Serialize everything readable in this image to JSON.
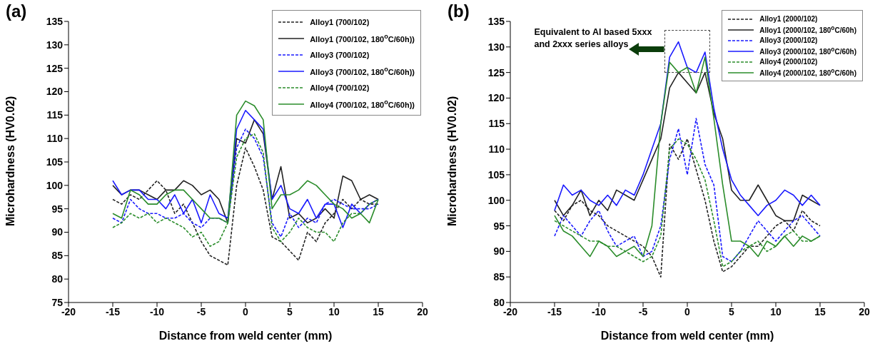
{
  "chart_data": [
    {
      "type": "line",
      "title": "(a)",
      "xlabel": "Distance from weld center (mm)",
      "ylabel": "Microhardness (HV0.02)",
      "xlim": [
        -20,
        20
      ],
      "xticks": [
        -20,
        -15,
        -10,
        -5,
        0,
        5,
        10,
        15,
        20
      ],
      "ylim": [
        75,
        135
      ],
      "yticks": [
        75,
        80,
        85,
        90,
        95,
        100,
        105,
        110,
        115,
        120,
        125,
        130,
        135
      ],
      "grid": false,
      "legend": "top right",
      "marker": "none",
      "x": [
        -15,
        -14,
        -13,
        -12,
        -11,
        -10,
        -9,
        -8,
        -7,
        -6,
        -5,
        -4,
        -3,
        -2,
        -1,
        0,
        1,
        2,
        3,
        4,
        5,
        6,
        7,
        8,
        9,
        10,
        11,
        12,
        13,
        14,
        15
      ],
      "series": [
        {
          "name": "Alloy1 (700/102)",
          "color": "#222222",
          "line_style": "dashed",
          "values": [
            97,
            96,
            98,
            97,
            99,
            101,
            99,
            94,
            96,
            92,
            88,
            85,
            84,
            83,
            100,
            108,
            104,
            99,
            89,
            88,
            86,
            84,
            90,
            88,
            92,
            94,
            97,
            95,
            97,
            96,
            96
          ]
        },
        {
          "name": "Alloy1 (700/102, 180$^{o}$C/60h))",
          "color": "#222222",
          "line_style": "solid",
          "values": [
            100,
            98,
            99,
            99,
            98,
            97,
            99,
            99,
            101,
            100,
            98,
            99,
            97,
            92,
            110,
            109,
            114,
            111,
            97,
            104,
            93,
            94,
            92,
            93,
            95,
            93,
            102,
            101,
            97,
            98,
            97
          ]
        },
        {
          "name": "Alloy3 (700/102)",
          "color": "#1a1aff",
          "line_style": "dashed",
          "values": [
            93,
            92,
            97,
            95,
            94,
            94,
            93,
            93,
            94,
            92,
            91,
            93,
            93,
            92,
            108,
            112,
            110,
            106,
            92,
            89,
            94,
            91,
            93,
            92,
            96,
            97,
            96,
            95,
            95,
            95,
            96
          ]
        },
        {
          "name": "Alloy3 (700/102, 180$^{o}$C/60h))",
          "color": "#1a1aff",
          "line_style": "solid",
          "values": [
            101,
            98,
            99,
            99,
            97,
            97,
            95,
            98,
            94,
            97,
            92,
            98,
            94,
            93,
            112,
            116,
            114,
            112,
            97,
            100,
            95,
            94,
            97,
            93,
            96,
            96,
            91,
            96,
            94,
            96,
            97
          ]
        },
        {
          "name": "Alloy4 (700/102)",
          "color": "#2a8c2a",
          "line_style": "dashed",
          "values": [
            91,
            92,
            94,
            93,
            94,
            92,
            93,
            92,
            91,
            89,
            90,
            87,
            88,
            92,
            106,
            110,
            111,
            107,
            91,
            88,
            90,
            93,
            91,
            90,
            90,
            88,
            92,
            94,
            94,
            96,
            97
          ]
        },
        {
          "name": "Alloy4 (700/102, 180$^{o}$C/60h))",
          "color": "#2a8c2a",
          "line_style": "solid",
          "values": [
            94,
            93,
            99,
            98,
            96,
            96,
            98,
            99,
            99,
            97,
            95,
            93,
            93,
            92,
            115,
            118,
            117,
            114,
            95,
            98,
            98,
            99,
            101,
            100,
            98,
            96,
            95,
            93,
            94,
            92,
            97
          ]
        }
      ]
    },
    {
      "type": "line",
      "title": "(b)",
      "xlabel": "Distance from weld center (mm)",
      "ylabel": "Microhardness (HV0.02)",
      "xlim": [
        -20,
        20
      ],
      "xticks": [
        -20,
        -15,
        -10,
        -5,
        0,
        5,
        10,
        15,
        20
      ],
      "ylim": [
        80,
        135
      ],
      "yticks": [
        80,
        85,
        90,
        95,
        100,
        105,
        110,
        115,
        120,
        125,
        130,
        135
      ],
      "grid": false,
      "legend": "top right",
      "marker": "none",
      "annotations": [
        "Equivalent to Al based 5xxx and 2xxx series alloys"
      ],
      "x": [
        -15,
        -14,
        -13,
        -12,
        -11,
        -10,
        -9,
        -8,
        -7,
        -6,
        -5,
        -4,
        -3,
        -2,
        -1,
        0,
        1,
        2,
        3,
        4,
        5,
        6,
        7,
        8,
        9,
        10,
        11,
        12,
        13,
        14,
        15
      ],
      "series": [
        {
          "name": "Alloy1 (2000/102)",
          "color": "#222222",
          "line_style": "dashed",
          "values": [
            98,
            96,
            99,
            100,
            98,
            97,
            95,
            94,
            93,
            92,
            91,
            89,
            85,
            111,
            108,
            112,
            106,
            100,
            92,
            86,
            87,
            89,
            91,
            91,
            93,
            95,
            96,
            94,
            98,
            96,
            95
          ]
        },
        {
          "name": "Alloy1 (2000/102, 180$^{o}$C/60h)",
          "color": "#222222",
          "line_style": "solid",
          "values": [
            100,
            97,
            99,
            102,
            97,
            100,
            98,
            102,
            101,
            100,
            104,
            108,
            112,
            122,
            125,
            123,
            121,
            125,
            117,
            112,
            102,
            100,
            100,
            103,
            100,
            97,
            96,
            96,
            101,
            100,
            99
          ]
        },
        {
          "name": "Alloy3 (2000/102)",
          "color": "#1a1aff",
          "line_style": "dashed",
          "values": [
            93,
            97,
            95,
            93,
            96,
            98,
            94,
            91,
            92,
            93,
            89,
            90,
            95,
            108,
            114,
            105,
            116,
            107,
            103,
            89,
            88,
            90,
            93,
            96,
            94,
            92,
            94,
            96,
            97,
            95,
            93
          ]
        },
        {
          "name": "Alloy3 (2000/102, 180$^{o}$C/60h)",
          "color": "#1a1aff",
          "line_style": "solid",
          "values": [
            98,
            103,
            101,
            102,
            100,
            99,
            101,
            99,
            102,
            101,
            105,
            110,
            115,
            128,
            131,
            126,
            125,
            129,
            118,
            110,
            104,
            101,
            99,
            97,
            99,
            100,
            102,
            101,
            99,
            101,
            99
          ]
        },
        {
          "name": "Alloy4 (2000/102)",
          "color": "#2a8c2a",
          "line_style": "dashed",
          "values": [
            96,
            95,
            94,
            93,
            92,
            92,
            91,
            91,
            90,
            89,
            88,
            89,
            93,
            110,
            112,
            111,
            108,
            104,
            96,
            87,
            88,
            90,
            91,
            92,
            90,
            91,
            93,
            94,
            92,
            92,
            93
          ]
        },
        {
          "name": "Alloy4 (2000/102, 180$^{o}$C/60h)",
          "color": "#2a8c2a",
          "line_style": "solid",
          "values": [
            97,
            94,
            93,
            91,
            89,
            92,
            91,
            89,
            90,
            91,
            89,
            95,
            115,
            127,
            125,
            126,
            121,
            128,
            116,
            103,
            92,
            92,
            91,
            89,
            92,
            91,
            93,
            91,
            93,
            92,
            93
          ]
        }
      ]
    }
  ]
}
